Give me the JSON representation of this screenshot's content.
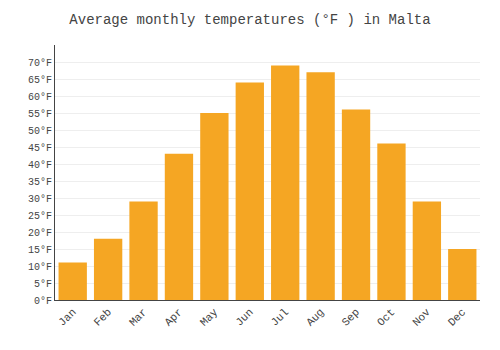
{
  "chart_data": {
    "type": "bar",
    "title": "Average monthly temperatures (°F ) in Malta",
    "categories": [
      "Jan",
      "Feb",
      "Mar",
      "Apr",
      "May",
      "Jun",
      "Jul",
      "Aug",
      "Sep",
      "Oct",
      "Nov",
      "Dec"
    ],
    "values": [
      11,
      18,
      29,
      43,
      55,
      64,
      69,
      67,
      56,
      46,
      29,
      15
    ],
    "color": "#F5A623",
    "ylim": [
      0,
      75
    ],
    "yticks": [
      {
        "value": 0,
        "label": "0°F"
      },
      {
        "value": 5,
        "label": "5°F"
      },
      {
        "value": 10,
        "label": "10°F"
      },
      {
        "value": 15,
        "label": "15°F"
      },
      {
        "value": 20,
        "label": "20°F"
      },
      {
        "value": 25,
        "label": "25°F"
      },
      {
        "value": 30,
        "label": "30°F"
      },
      {
        "value": 35,
        "label": "35°F"
      },
      {
        "value": 40,
        "label": "40°F"
      },
      {
        "value": 45,
        "label": "45°F"
      },
      {
        "value": 50,
        "label": "50°F"
      },
      {
        "value": 55,
        "label": "55°F"
      },
      {
        "value": 60,
        "label": "60°F"
      },
      {
        "value": 65,
        "label": "65°F"
      },
      {
        "value": 70,
        "label": "70°F"
      }
    ],
    "grid": true
  }
}
